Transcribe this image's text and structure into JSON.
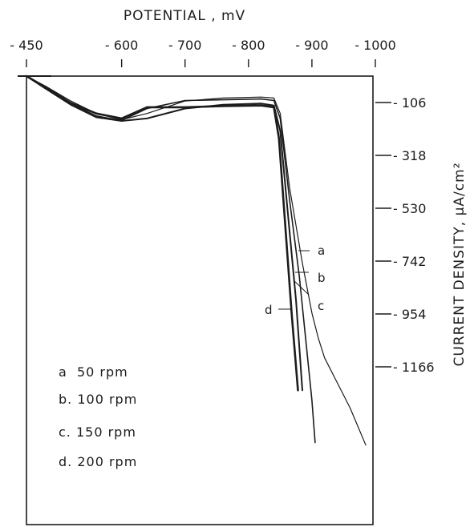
{
  "chart_data": {
    "type": "line",
    "title": "",
    "xlabel": "POTENTIAL , mV",
    "ylabel": "CURRENT DENSITY, μA/cm²",
    "x_axis_position": "top",
    "y_axis_position": "right",
    "x_ticks": [
      {
        "value": -450,
        "label": "- 450"
      },
      {
        "value": -600,
        "label": "- 600"
      },
      {
        "value": -700,
        "label": "- 700"
      },
      {
        "value": -800,
        "label": "- 800"
      },
      {
        "value": -900,
        "label": "- 900"
      },
      {
        "value": -1000,
        "label": "- 1000"
      }
    ],
    "y_ticks": [
      {
        "value": -106,
        "label": "- 106"
      },
      {
        "value": -318,
        "label": "- 318"
      },
      {
        "value": -530,
        "label": "- 530"
      },
      {
        "value": -742,
        "label": "- 742"
      },
      {
        "value": -954,
        "label": "- 954"
      },
      {
        "value": -1166,
        "label": "- 1166"
      }
    ],
    "xlim": [
      -450,
      -1000
    ],
    "ylim": [
      0,
      -1530
    ],
    "grid": false,
    "series": [
      {
        "name": "a",
        "x": [
          -450,
          -480,
          -520,
          -560,
          -600,
          -640,
          -700,
          -760,
          -820,
          -840,
          -850,
          -865,
          -885,
          -900,
          -910,
          -920,
          -940,
          -960,
          -985
        ],
        "y": [
          0,
          -40,
          -100,
          -150,
          -175,
          -150,
          -100,
          -88,
          -84,
          -88,
          -150,
          -450,
          -750,
          -950,
          -1050,
          -1130,
          -1230,
          -1330,
          -1480
        ]
      },
      {
        "name": "b",
        "x": [
          -450,
          -480,
          -520,
          -560,
          -600,
          -640,
          -700,
          -760,
          -820,
          -840,
          -850,
          -865,
          -880,
          -890,
          -900,
          -905
        ],
        "y": [
          0,
          -45,
          -110,
          -160,
          -178,
          -130,
          -98,
          -95,
          -92,
          -98,
          -170,
          -500,
          -800,
          -1050,
          -1300,
          -1470
        ]
      },
      {
        "name": "c",
        "x": [
          -450,
          -480,
          -520,
          -560,
          -600,
          -640,
          -700,
          -760,
          -820,
          -840,
          -850,
          -862,
          -875,
          -885
        ],
        "y": [
          0,
          -50,
          -115,
          -165,
          -180,
          -170,
          -130,
          -115,
          -110,
          -118,
          -220,
          -550,
          -900,
          -1260
        ]
      },
      {
        "name": "d",
        "x": [
          -450,
          -480,
          -520,
          -560,
          -600,
          -640,
          -700,
          -760,
          -820,
          -840,
          -848,
          -858,
          -868,
          -878
        ],
        "y": [
          0,
          -45,
          -108,
          -150,
          -170,
          -125,
          -125,
          -120,
          -118,
          -125,
          -250,
          -600,
          -950,
          -1260
        ]
      }
    ],
    "curve_labels": [
      "a",
      "b",
      "c",
      "d"
    ],
    "legend": {
      "placement": "bottom-left",
      "entries": [
        "a  50 rpm",
        "b. 100 rpm",
        "c. 150 rpm",
        "d. 200 rpm"
      ]
    }
  }
}
